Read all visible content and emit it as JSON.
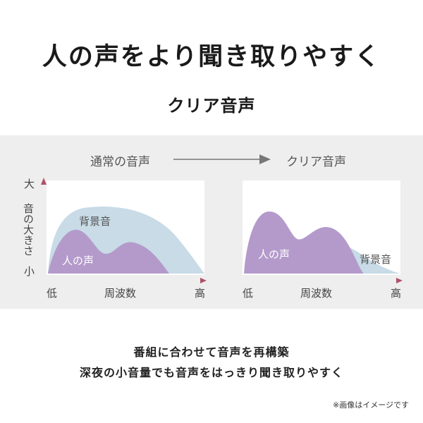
{
  "headline": "人の声をより聞き取りやすく",
  "subheadline": "クリア音声",
  "comparison": {
    "before_label": "通常の音声",
    "after_label": "クリア音声"
  },
  "y_axis": {
    "top": "大",
    "bottom": "小",
    "title": "音の大きさ"
  },
  "x_axis": {
    "left": "低",
    "right": "高",
    "title": "周波数"
  },
  "series": {
    "background": "背景音",
    "voice": "人の声"
  },
  "colors": {
    "background_sound": "#c8dbe6",
    "voice": "#b49acb",
    "axis": "#b0526b",
    "arrow": "#777777"
  },
  "captions": {
    "line1": "番組に合わせて音声を再構築",
    "line2": "深夜の小音量でも音声をはっきり聞き取りやすく"
  },
  "footnote": "※画像はイメージです"
}
